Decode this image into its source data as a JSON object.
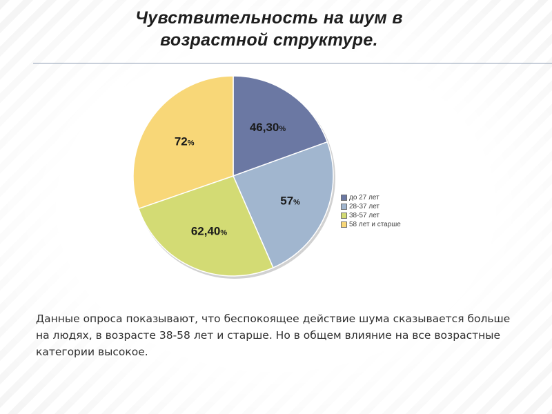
{
  "title": "Чувствительность на шум в возрастной структуре.",
  "chart_data": {
    "type": "pie",
    "title": "Чувствительность на шум в возрастной структуре.",
    "slices": [
      {
        "category": "до 27 лет",
        "value_label": "46,30",
        "value": 46.3,
        "unit": "%",
        "color": "#6b78a3"
      },
      {
        "category": "28-37 лет",
        "value_label": "57",
        "value": 57,
        "unit": "%",
        "color": "#a1b6cf"
      },
      {
        "category": "38-57 лет",
        "value_label": "62,40",
        "value": 62.4,
        "unit": "%",
        "color": "#d3db74"
      },
      {
        "category": "58 лет и старше",
        "value_label": "72",
        "value": 72,
        "unit": "%",
        "color": "#f8d778"
      }
    ],
    "legend_position": "right"
  },
  "caption": "Данные опроса показывают, что беспокоящее действие шума сказывается больше на людях, в возрасте 38-58 лет и старше. Но в общем влияние на все возрастные категории высокое."
}
